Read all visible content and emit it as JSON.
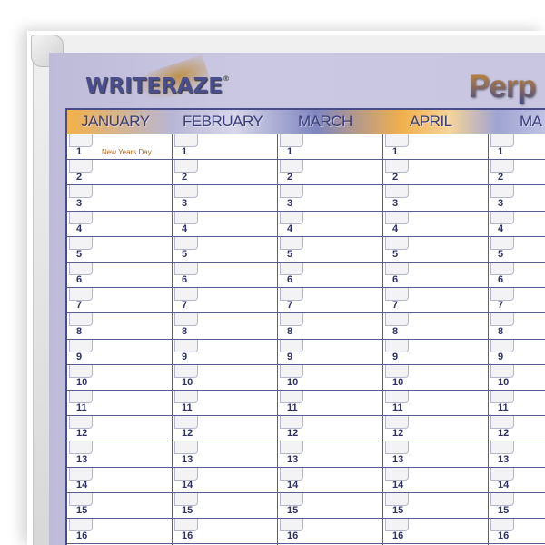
{
  "brand": {
    "name": "WRITERAZE",
    "registered": "®"
  },
  "title": "Perp",
  "months": [
    "JANUARY",
    "FEBRUARY",
    "MARCH",
    "APRIL",
    "MA"
  ],
  "days": [
    1,
    2,
    3,
    4,
    5,
    6,
    7,
    8,
    9,
    10,
    11,
    12,
    13,
    14,
    15,
    16
  ],
  "notes": {
    "january_1": "New Years Day"
  },
  "colors": {
    "frame": "#d8d8d8",
    "panel": "#c8c6e0",
    "grid_line": "#5a5c94",
    "number": "#2e3068",
    "note": "#b06a10",
    "band_gold": "#f2b24a"
  }
}
